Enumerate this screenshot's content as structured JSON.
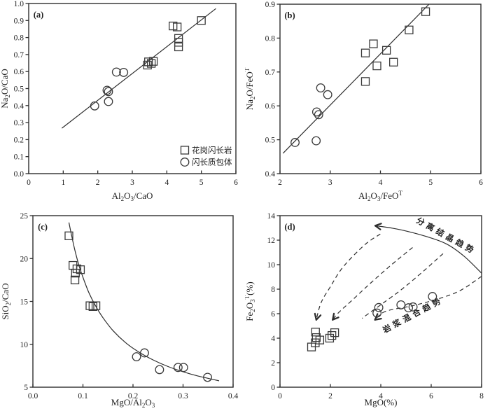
{
  "figure": {
    "background": "#ffffff",
    "ink_color": "#2e2e2e",
    "marker_color": "#3a3a3a"
  },
  "legend": {
    "items": [
      {
        "marker": "square",
        "label": "花岗闪长岩"
      },
      {
        "marker": "circle",
        "label": "闪长质包体"
      }
    ]
  },
  "chart_data": [
    {
      "id": "a",
      "type": "scatter",
      "tag": "(a)",
      "xlabel": "Al_2O_3/CaO",
      "ylabel": "Na_2O/CaO",
      "xlim": [
        0,
        6
      ],
      "ylim": [
        0,
        1.0
      ],
      "xticks": [
        0,
        1,
        2,
        3,
        4,
        5,
        6
      ],
      "yticks": [
        0.0,
        0.1,
        0.2,
        0.3,
        0.4,
        0.5,
        0.6,
        0.7,
        0.8,
        0.9,
        1.0
      ],
      "xtick_decimals": 0,
      "ytick_decimals": 1,
      "series": [
        {
          "name": "granodiorite",
          "marker": "square",
          "points": [
            [
              4.18,
              0.868
            ],
            [
              4.3,
              0.862
            ],
            [
              4.34,
              0.795
            ],
            [
              4.34,
              0.772
            ],
            [
              4.34,
              0.745
            ],
            [
              3.44,
              0.638
            ],
            [
              3.47,
              0.657
            ],
            [
              3.55,
              0.648
            ],
            [
              3.61,
              0.66
            ],
            [
              5.0,
              0.9
            ]
          ]
        },
        {
          "name": "dioritic-enclave",
          "marker": "circle",
          "points": [
            [
              2.54,
              0.597
            ],
            [
              2.75,
              0.595
            ],
            [
              2.27,
              0.49
            ],
            [
              2.31,
              0.482
            ],
            [
              2.31,
              0.424
            ],
            [
              1.91,
              0.398
            ]
          ]
        }
      ],
      "curves": [
        {
          "style": "solid",
          "arrow": "none",
          "points": [
            [
              0.96,
              0.267
            ],
            [
              5.42,
              0.97
            ]
          ]
        }
      ],
      "legend": {
        "x": 4.52,
        "items": [
          {
            "marker": "square",
            "label": "花岗闪长岩",
            "y": 0.138
          },
          {
            "marker": "circle",
            "label": "闪长质包体",
            "y": 0.068
          }
        ]
      },
      "texts": []
    },
    {
      "id": "b",
      "type": "scatter",
      "tag": "(b)",
      "xlabel": "Al_2O_3/FeO^T",
      "ylabel": "Na_2O/FeO^T",
      "xlim": [
        2,
        6
      ],
      "ylim": [
        0.4,
        0.9
      ],
      "xticks": [
        2,
        3,
        4,
        5,
        6
      ],
      "yticks": [
        0.4,
        0.5,
        0.6,
        0.7,
        0.8,
        0.9
      ],
      "xtick_decimals": 0,
      "ytick_decimals": 1,
      "series": [
        {
          "name": "granodiorite",
          "marker": "square",
          "points": [
            [
              4.9,
              0.878
            ],
            [
              4.57,
              0.824
            ],
            [
              3.86,
              0.783
            ],
            [
              4.12,
              0.764
            ],
            [
              3.7,
              0.756
            ],
            [
              4.26,
              0.729
            ],
            [
              3.93,
              0.718
            ],
            [
              3.7,
              0.672
            ]
          ]
        },
        {
          "name": "dioritic-enclave",
          "marker": "circle",
          "points": [
            [
              2.81,
              0.653
            ],
            [
              2.95,
              0.633
            ],
            [
              2.73,
              0.582
            ],
            [
              2.77,
              0.574
            ],
            [
              2.72,
              0.497
            ],
            [
              2.3,
              0.492
            ]
          ]
        }
      ],
      "curves": [
        {
          "style": "solid",
          "arrow": "none",
          "points": [
            [
              2.06,
              0.46
            ],
            [
              5.02,
              0.908
            ]
          ]
        }
      ],
      "texts": []
    },
    {
      "id": "c",
      "type": "scatter",
      "tag": "(c)",
      "xlabel": "MgO/Al_2O_3",
      "ylabel": "SiO_2/CaO",
      "xlim": [
        0,
        0.4
      ],
      "ylim": [
        5,
        25
      ],
      "xticks": [
        0.0,
        0.1,
        0.2,
        0.3,
        0.4
      ],
      "yticks": [
        5,
        10,
        15,
        20,
        25
      ],
      "xtick_decimals": 1,
      "ytick_decimals": 0,
      "series": [
        {
          "name": "granodiorite",
          "marker": "square",
          "points": [
            [
              0.072,
              22.65
            ],
            [
              0.08,
              19.2
            ],
            [
              0.088,
              18.8
            ],
            [
              0.095,
              18.7
            ],
            [
              0.085,
              18.3
            ],
            [
              0.084,
              17.5
            ],
            [
              0.114,
              14.5
            ],
            [
              0.12,
              14.4
            ],
            [
              0.126,
              14.5
            ]
          ]
        },
        {
          "name": "dioritic-enclave",
          "marker": "circle",
          "points": [
            [
              0.207,
              8.55
            ],
            [
              0.223,
              9.0
            ],
            [
              0.253,
              7.05
            ],
            [
              0.29,
              7.3
            ],
            [
              0.301,
              7.3
            ],
            [
              0.349,
              6.15
            ]
          ]
        }
      ],
      "curves": [
        {
          "style": "solid",
          "arrow": "none",
          "points": [
            [
              0.072,
              24.2
            ],
            [
              0.078,
              22.5
            ],
            [
              0.085,
              20.7
            ],
            [
              0.093,
              19.0
            ],
            [
              0.102,
              17.5
            ],
            [
              0.112,
              16.0
            ],
            [
              0.125,
              14.5
            ],
            [
              0.14,
              13.1
            ],
            [
              0.16,
              11.6
            ],
            [
              0.185,
              10.2
            ],
            [
              0.21,
              9.16
            ],
            [
              0.24,
              8.18
            ],
            [
              0.27,
              7.41
            ],
            [
              0.3,
              6.8
            ],
            [
              0.33,
              6.3
            ],
            [
              0.372,
              5.74
            ]
          ]
        }
      ],
      "texts": []
    },
    {
      "id": "d",
      "type": "scatter",
      "tag": "(d)",
      "xlabel": "MgO(%)",
      "ylabel": "Fe_2O_3^T(%)",
      "xlim": [
        0,
        8
      ],
      "ylim": [
        0,
        14
      ],
      "xticks": [
        0,
        2,
        4,
        6,
        8
      ],
      "yticks": [
        0,
        2,
        4,
        6,
        8,
        10,
        12,
        14
      ],
      "xtick_decimals": 0,
      "ytick_decimals": 0,
      "series": [
        {
          "name": "granodiorite",
          "marker": "square",
          "points": [
            [
              1.25,
              3.28
            ],
            [
              1.4,
              3.62
            ],
            [
              1.44,
              4.05
            ],
            [
              1.41,
              4.5
            ],
            [
              1.58,
              3.85
            ],
            [
              1.97,
              4.0
            ],
            [
              2.06,
              4.22
            ],
            [
              2.17,
              4.45
            ]
          ]
        },
        {
          "name": "dioritic-enclave",
          "marker": "circle",
          "points": [
            [
              3.85,
              6.05
            ],
            [
              3.92,
              6.5
            ],
            [
              4.8,
              6.72
            ],
            [
              5.1,
              6.48
            ],
            [
              5.28,
              6.55
            ],
            [
              6.05,
              7.4
            ]
          ]
        }
      ],
      "curves": [
        {
          "style": "solid",
          "arrow": "end",
          "points": [
            [
              8.0,
              9.3
            ],
            [
              7.3,
              10.7
            ],
            [
              6.6,
              11.7
            ],
            [
              5.8,
              12.3
            ],
            [
              5.0,
              12.75
            ],
            [
              4.4,
              13.0
            ],
            [
              3.78,
              13.18
            ]
          ]
        },
        {
          "style": "dashed",
          "arrow": "end",
          "points": [
            [
              3.98,
              12.5
            ],
            [
              3.35,
              11.6
            ],
            [
              2.5,
              9.8
            ],
            [
              2.0,
              8.2
            ],
            [
              1.63,
              6.9
            ],
            [
              1.44,
              5.5
            ]
          ]
        },
        {
          "style": "dashed",
          "arrow": "end",
          "points": [
            [
              5.26,
              11.4
            ],
            [
              4.37,
              9.9
            ],
            [
              3.49,
              8.3
            ],
            [
              2.84,
              7.05
            ],
            [
              2.33,
              6.1
            ],
            [
              2.09,
              5.5
            ]
          ]
        },
        {
          "style": "dashed",
          "arrow": "none",
          "points": [
            [
              6.47,
              10.9
            ],
            [
              5.67,
              9.43
            ],
            [
              4.84,
              8.0
            ],
            [
              4.09,
              6.86
            ],
            [
              3.44,
              5.9
            ],
            [
              3.26,
              5.62
            ]
          ]
        },
        {
          "style": "dashed",
          "arrow": "end",
          "points": [
            [
              8.0,
              9.05
            ],
            [
              7.16,
              7.9
            ],
            [
              6.33,
              7.24
            ],
            [
              5.3,
              6.67
            ],
            [
              4.19,
              6.19
            ],
            [
              3.77,
              5.5
            ]
          ]
        }
      ],
      "texts": [
        {
          "label": "分离结晶趋势",
          "x": 6.55,
          "y": 12.15,
          "angle": 29
        },
        {
          "label": "岩浆混合趋势",
          "x": 5.33,
          "y": 5.7,
          "angle": -28
        }
      ]
    }
  ]
}
